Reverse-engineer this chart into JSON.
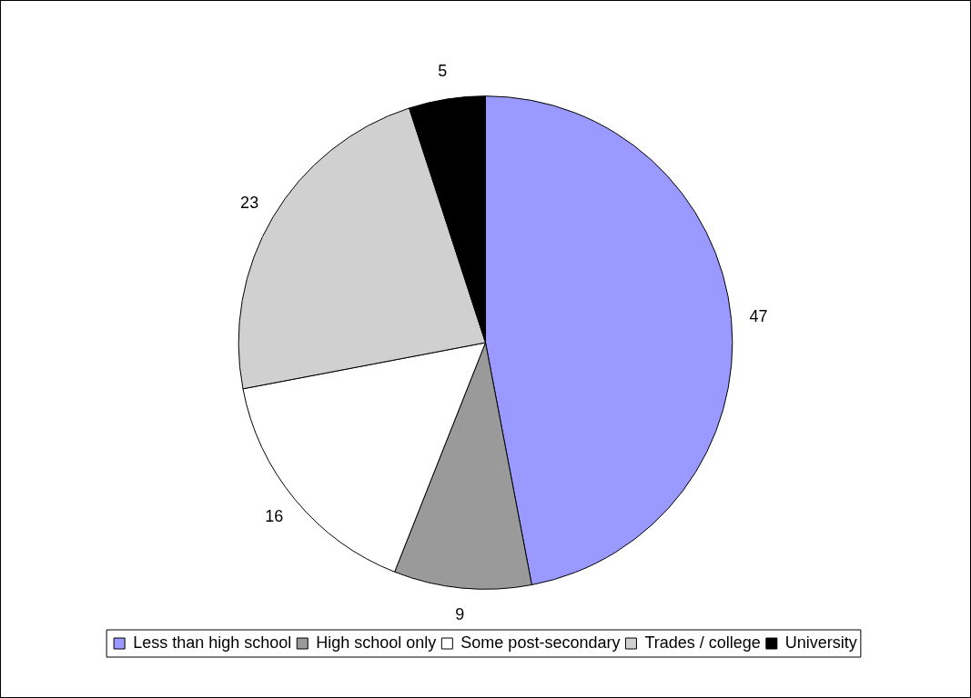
{
  "chart_data": {
    "type": "pie",
    "categories": [
      "Less than high school",
      "High school only",
      "Some post-secondary",
      "Trades / college",
      "University"
    ],
    "values": [
      47,
      9,
      16,
      23,
      5
    ],
    "colors": [
      "#9999ff",
      "#9a9a9a",
      "#ffffff",
      "#d0d0d0",
      "#000000"
    ],
    "data_labels": true,
    "legend": "bottom"
  }
}
